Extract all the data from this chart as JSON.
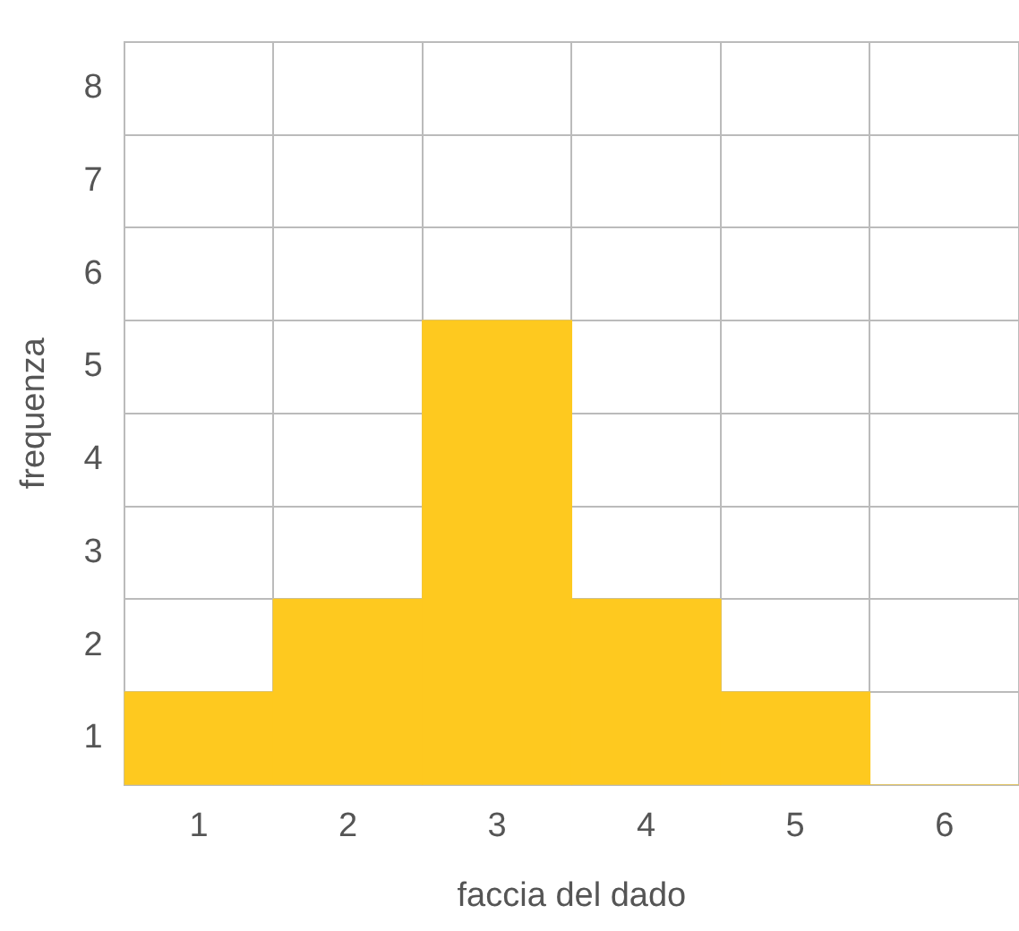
{
  "chart_data": {
    "type": "bar",
    "xlabel": "faccia del dado",
    "ylabel": "frequenza",
    "categories": [
      "1",
      "2",
      "3",
      "4",
      "5",
      "6"
    ],
    "values": [
      1,
      2,
      5,
      2,
      1,
      0
    ],
    "color": "#fec91f",
    "ylim": [
      0,
      8
    ],
    "yticks": [
      {
        "value": 0.5,
        "label": "1"
      },
      {
        "value": 1,
        "label": null
      },
      {
        "value": 1.5,
        "label": "2"
      },
      {
        "value": 2,
        "label": null
      },
      {
        "value": 2.5,
        "label": "3"
      },
      {
        "value": 3,
        "label": null
      },
      {
        "value": 3.5,
        "label": "4"
      },
      {
        "value": 4,
        "label": null
      },
      {
        "value": 4.5,
        "label": "5"
      },
      {
        "value": 5,
        "label": null
      },
      {
        "value": 5.5,
        "label": "6"
      },
      {
        "value": 6,
        "label": null
      },
      {
        "value": 6.5,
        "label": "7"
      },
      {
        "value": 7,
        "label": null
      },
      {
        "value": 7.5,
        "label": "8"
      },
      {
        "value": 8,
        "label": null
      }
    ],
    "grid": true,
    "legend": false
  }
}
